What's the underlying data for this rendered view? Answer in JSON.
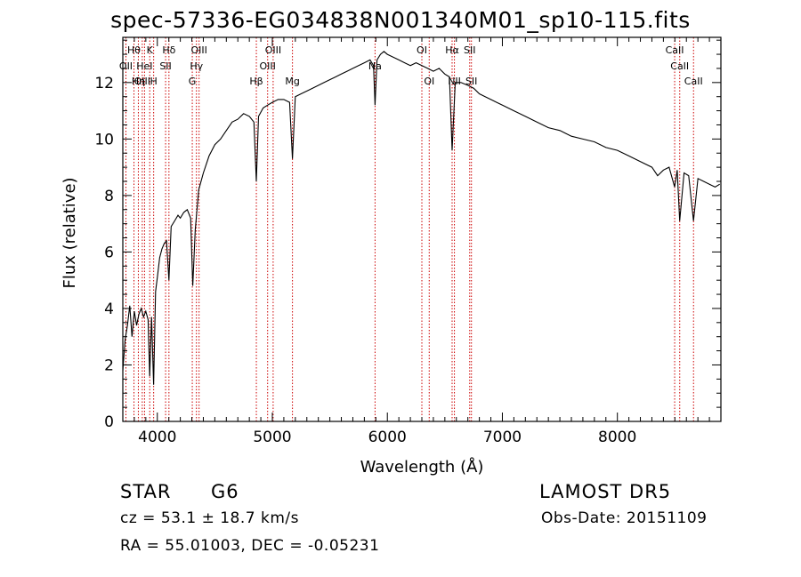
{
  "title": "spec-57336-EG034838N001340M01_sp10-115.fits",
  "footer": {
    "object_class": "STAR",
    "subclass": "G6",
    "survey": "LAMOST DR5",
    "cz": "cz = 53.1 ± 18.7 km/s",
    "obs_date": "Obs-Date: 20151109",
    "radec": "RA =  55.01003, DEC =  -0.05231"
  },
  "chart_data": {
    "type": "line",
    "title": "spec-57336-EG034838N001340M01_sp10-115.fits",
    "xlabel": "Wavelength (Å)",
    "ylabel": "Flux (relative)",
    "xlim": [
      3700,
      8900
    ],
    "ylim": [
      0,
      13.6
    ],
    "xticks": [
      4000,
      5000,
      6000,
      7000,
      8000
    ],
    "yticks": [
      0,
      2,
      4,
      6,
      8,
      10,
      12
    ],
    "line_color": "#000000",
    "marker_color": "#cc0000",
    "spectrum": [
      [
        3700,
        1.8
      ],
      [
        3720,
        2.9
      ],
      [
        3740,
        3.4
      ],
      [
        3760,
        4.1
      ],
      [
        3780,
        3.0
      ],
      [
        3800,
        3.9
      ],
      [
        3820,
        3.4
      ],
      [
        3840,
        3.8
      ],
      [
        3860,
        4.0
      ],
      [
        3880,
        3.7
      ],
      [
        3900,
        3.9
      ],
      [
        3920,
        3.6
      ],
      [
        3934,
        1.6
      ],
      [
        3950,
        3.7
      ],
      [
        3968,
        1.3
      ],
      [
        3985,
        4.6
      ],
      [
        4000,
        5.1
      ],
      [
        4020,
        5.8
      ],
      [
        4040,
        6.1
      ],
      [
        4060,
        6.3
      ],
      [
        4080,
        6.4
      ],
      [
        4101,
        5.0
      ],
      [
        4120,
        6.9
      ],
      [
        4150,
        7.1
      ],
      [
        4180,
        7.3
      ],
      [
        4200,
        7.2
      ],
      [
        4230,
        7.4
      ],
      [
        4260,
        7.5
      ],
      [
        4290,
        7.2
      ],
      [
        4308,
        4.8
      ],
      [
        4330,
        6.8
      ],
      [
        4360,
        8.2
      ],
      [
        4400,
        8.8
      ],
      [
        4450,
        9.4
      ],
      [
        4500,
        9.8
      ],
      [
        4550,
        10.0
      ],
      [
        4600,
        10.3
      ],
      [
        4650,
        10.6
      ],
      [
        4700,
        10.7
      ],
      [
        4750,
        10.9
      ],
      [
        4800,
        10.8
      ],
      [
        4840,
        10.6
      ],
      [
        4861,
        8.5
      ],
      [
        4880,
        10.8
      ],
      [
        4920,
        11.1
      ],
      [
        4960,
        11.2
      ],
      [
        5000,
        11.3
      ],
      [
        5050,
        11.4
      ],
      [
        5100,
        11.4
      ],
      [
        5150,
        11.3
      ],
      [
        5175,
        9.3
      ],
      [
        5200,
        11.5
      ],
      [
        5250,
        11.6
      ],
      [
        5300,
        11.7
      ],
      [
        5350,
        11.8
      ],
      [
        5400,
        11.9
      ],
      [
        5450,
        12.0
      ],
      [
        5500,
        12.1
      ],
      [
        5550,
        12.2
      ],
      [
        5600,
        12.3
      ],
      [
        5650,
        12.4
      ],
      [
        5700,
        12.5
      ],
      [
        5750,
        12.6
      ],
      [
        5800,
        12.7
      ],
      [
        5850,
        12.8
      ],
      [
        5880,
        12.6
      ],
      [
        5893,
        11.2
      ],
      [
        5910,
        12.8
      ],
      [
        5940,
        13.0
      ],
      [
        5970,
        13.1
      ],
      [
        6000,
        13.0
      ],
      [
        6050,
        12.9
      ],
      [
        6100,
        12.8
      ],
      [
        6150,
        12.7
      ],
      [
        6200,
        12.6
      ],
      [
        6250,
        12.7
      ],
      [
        6300,
        12.6
      ],
      [
        6350,
        12.5
      ],
      [
        6400,
        12.4
      ],
      [
        6450,
        12.5
      ],
      [
        6500,
        12.3
      ],
      [
        6540,
        12.2
      ],
      [
        6563,
        9.6
      ],
      [
        6590,
        12.0
      ],
      [
        6640,
        12.0
      ],
      [
        6700,
        11.9
      ],
      [
        6750,
        11.8
      ],
      [
        6800,
        11.6
      ],
      [
        6850,
        11.5
      ],
      [
        6900,
        11.4
      ],
      [
        6950,
        11.3
      ],
      [
        7000,
        11.2
      ],
      [
        7100,
        11.0
      ],
      [
        7200,
        10.8
      ],
      [
        7300,
        10.6
      ],
      [
        7400,
        10.4
      ],
      [
        7500,
        10.3
      ],
      [
        7600,
        10.1
      ],
      [
        7700,
        10.0
      ],
      [
        7800,
        9.9
      ],
      [
        7900,
        9.7
      ],
      [
        8000,
        9.6
      ],
      [
        8100,
        9.4
      ],
      [
        8200,
        9.2
      ],
      [
        8300,
        9.0
      ],
      [
        8350,
        8.7
      ],
      [
        8400,
        8.9
      ],
      [
        8450,
        9.0
      ],
      [
        8498,
        8.3
      ],
      [
        8520,
        8.9
      ],
      [
        8542,
        7.1
      ],
      [
        8580,
        8.8
      ],
      [
        8620,
        8.7
      ],
      [
        8662,
        7.1
      ],
      [
        8700,
        8.6
      ],
      [
        8750,
        8.5
      ],
      [
        8800,
        8.4
      ],
      [
        8850,
        8.3
      ],
      [
        8890,
        8.4
      ]
    ],
    "lines": [
      {
        "label": "Hθ",
        "x": 3797,
        "row": 0
      },
      {
        "label": "OII",
        "x": 3727,
        "row": 1
      },
      {
        "label": "OIII",
        "x": 3869,
        "row": 2
      },
      {
        "label": "Hη",
        "x": 3835,
        "row": 2
      },
      {
        "label": "K",
        "x": 3934,
        "row": 0
      },
      {
        "label": "HeI",
        "x": 3889,
        "row": 1
      },
      {
        "label": "H",
        "x": 3968,
        "row": 2
      },
      {
        "label": "Hδ",
        "x": 4101,
        "row": 0
      },
      {
        "label": "SII",
        "x": 4072,
        "row": 1
      },
      {
        "label": "OIII",
        "x": 4363,
        "row": 0
      },
      {
        "label": "Hγ",
        "x": 4340,
        "row": 1
      },
      {
        "label": "G",
        "x": 4304,
        "row": 2
      },
      {
        "label": "Hβ",
        "x": 4861,
        "row": 2
      },
      {
        "label": "OIII",
        "x": 5007,
        "row": 0
      },
      {
        "label": "OIII",
        "x": 4959,
        "row": 1
      },
      {
        "label": "Mg",
        "x": 5175,
        "row": 2
      },
      {
        "label": "Na",
        "x": 5893,
        "row": 1
      },
      {
        "label": "OI",
        "x": 6300,
        "row": 0
      },
      {
        "label": "OI",
        "x": 6364,
        "row": 2
      },
      {
        "label": "Hα",
        "x": 6563,
        "row": 0
      },
      {
        "label": "NII",
        "x": 6583,
        "row": 2
      },
      {
        "label": "SII",
        "x": 6716,
        "row": 0
      },
      {
        "label": "SII",
        "x": 6731,
        "row": 2
      },
      {
        "label": "CaII",
        "x": 8498,
        "row": 0
      },
      {
        "label": "CaII",
        "x": 8542,
        "row": 1
      },
      {
        "label": "CaII",
        "x": 8662,
        "row": 2
      }
    ]
  }
}
